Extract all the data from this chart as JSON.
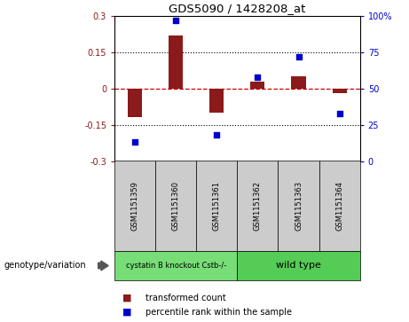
{
  "title": "GDS5090 / 1428208_at",
  "samples": [
    "GSM1151359",
    "GSM1151360",
    "GSM1151361",
    "GSM1151362",
    "GSM1151363",
    "GSM1151364"
  ],
  "bar_values": [
    -0.12,
    0.22,
    -0.1,
    0.03,
    0.05,
    -0.02
  ],
  "dot_values": [
    13,
    97,
    18,
    58,
    72,
    33
  ],
  "ylim_left": [
    -0.3,
    0.3
  ],
  "ylim_right": [
    0,
    100
  ],
  "yticks_left": [
    -0.3,
    -0.15,
    0.0,
    0.15,
    0.3
  ],
  "ytick_labels_left": [
    "-0.3",
    "-0.15",
    "0",
    "0.15",
    "0.3"
  ],
  "yticks_right": [
    0,
    25,
    50,
    75,
    100
  ],
  "ytick_labels_right": [
    "0",
    "25",
    "50",
    "75",
    "100%"
  ],
  "bar_color": "#8B1A1A",
  "dot_color": "#0000CC",
  "zero_line_color": "#CC0000",
  "group1_label": "cystatin B knockout Cstb-/-",
  "group2_label": "wild type",
  "group1_color": "#77DD77",
  "group2_color": "#55CC55",
  "genotype_label": "genotype/variation",
  "legend_bar_label": "transformed count",
  "legend_dot_label": "percentile rank within the sample",
  "bar_width": 0.35,
  "dotted_line_color": "#000000",
  "bg_color": "#FFFFFF",
  "plot_bg_color": "#FFFFFF",
  "tick_label_area_color": "#CCCCCC"
}
